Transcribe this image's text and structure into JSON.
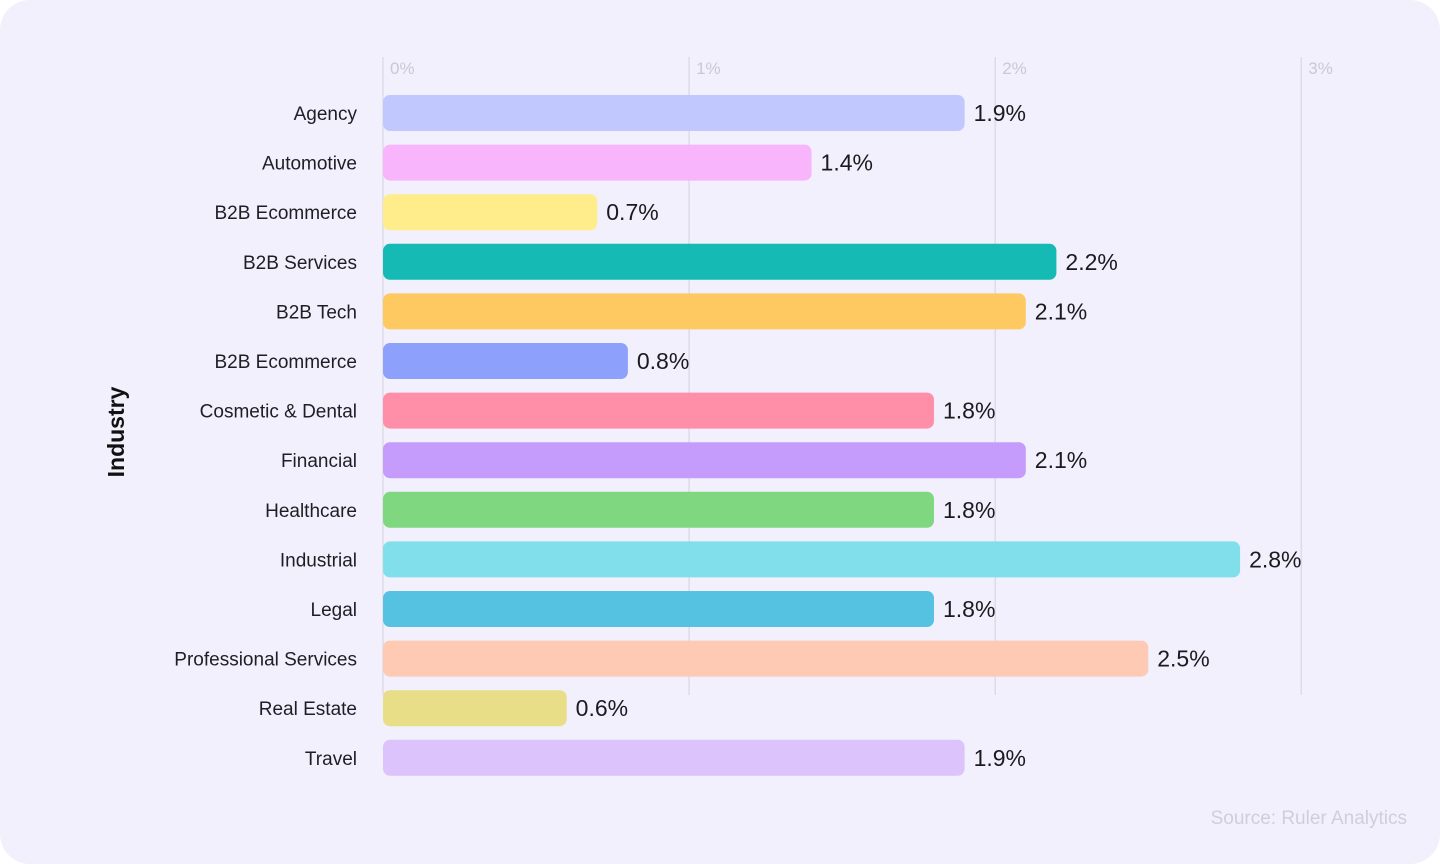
{
  "chart_data": {
    "type": "bar",
    "orientation": "horizontal",
    "title": "",
    "xlabel": "",
    "ylabel": "Industry",
    "xlim": [
      0,
      3
    ],
    "x_ticks": [
      0,
      1,
      2,
      3
    ],
    "x_tick_labels": [
      "0%",
      "1%",
      "2%",
      "3%"
    ],
    "grid": true,
    "categories": [
      "Agency",
      "Automotive",
      "B2B Ecommerce",
      "B2B Services",
      "B2B Tech",
      "B2B Ecommerce",
      "Cosmetic & Dental",
      "Financial",
      "Healthcare",
      "Industrial",
      "Legal",
      "Professional Services",
      "Real Estate",
      "Travel"
    ],
    "values": [
      1.9,
      1.4,
      0.7,
      2.2,
      2.1,
      0.8,
      1.8,
      2.1,
      1.8,
      2.8,
      1.8,
      2.5,
      0.6,
      1.9
    ],
    "value_labels": [
      "1.9%",
      "1.4%",
      "0.7%",
      "2.2%",
      "2.1%",
      "0.8%",
      "1.8%",
      "2.1%",
      "1.8%",
      "2.8%",
      "1.8%",
      "2.5%",
      "0.6%",
      "1.9%"
    ],
    "colors": [
      "#C0C8FE",
      "#F9B5FB",
      "#FFEC8A",
      "#14BAB3",
      "#FFC962",
      "#8CA0FC",
      "#FF8FA9",
      "#C59CFC",
      "#7FD77F",
      "#81DFEC",
      "#56C2E2",
      "#FFCAB4",
      "#E8DE88",
      "#DDC3FC"
    ],
    "source": "Source: Ruler Analytics"
  }
}
